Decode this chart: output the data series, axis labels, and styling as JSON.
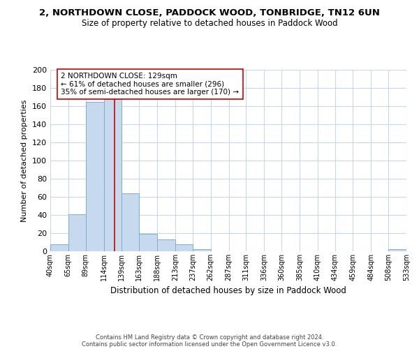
{
  "title": "2, NORTHDOWN CLOSE, PADDOCK WOOD, TONBRIDGE, TN12 6UN",
  "subtitle": "Size of property relative to detached houses in Paddock Wood",
  "xlabel": "Distribution of detached houses by size in Paddock Wood",
  "ylabel": "Number of detached properties",
  "bar_edges": [
    40,
    65,
    89,
    114,
    139,
    163,
    188,
    213,
    237,
    262,
    287,
    311,
    336,
    360,
    385,
    410,
    434,
    459,
    484,
    508,
    533
  ],
  "bar_heights": [
    8,
    41,
    165,
    168,
    64,
    19,
    13,
    8,
    2,
    0,
    0,
    0,
    0,
    0,
    0,
    0,
    0,
    0,
    0,
    2
  ],
  "bar_color": "#c6d9ed",
  "bar_edge_color": "#7dadd4",
  "property_line_x": 129,
  "property_line_color": "#cc0000",
  "ylim": [
    0,
    200
  ],
  "yticks": [
    0,
    20,
    40,
    60,
    80,
    100,
    120,
    140,
    160,
    180,
    200
  ],
  "annotation_title": "2 NORTHDOWN CLOSE: 129sqm",
  "annotation_line1": "← 61% of detached houses are smaller (296)",
  "annotation_line2": "35% of semi-detached houses are larger (170) →",
  "footer_line1": "Contains HM Land Registry data © Crown copyright and database right 2024.",
  "footer_line2": "Contains public sector information licensed under the Open Government Licence v3.0.",
  "tick_labels": [
    "40sqm",
    "65sqm",
    "89sqm",
    "114sqm",
    "139sqm",
    "163sqm",
    "188sqm",
    "213sqm",
    "237sqm",
    "262sqm",
    "287sqm",
    "311sqm",
    "336sqm",
    "360sqm",
    "385sqm",
    "410sqm",
    "434sqm",
    "459sqm",
    "484sqm",
    "508sqm",
    "533sqm"
  ],
  "background_color": "#ffffff",
  "grid_color": "#c8d8e8"
}
